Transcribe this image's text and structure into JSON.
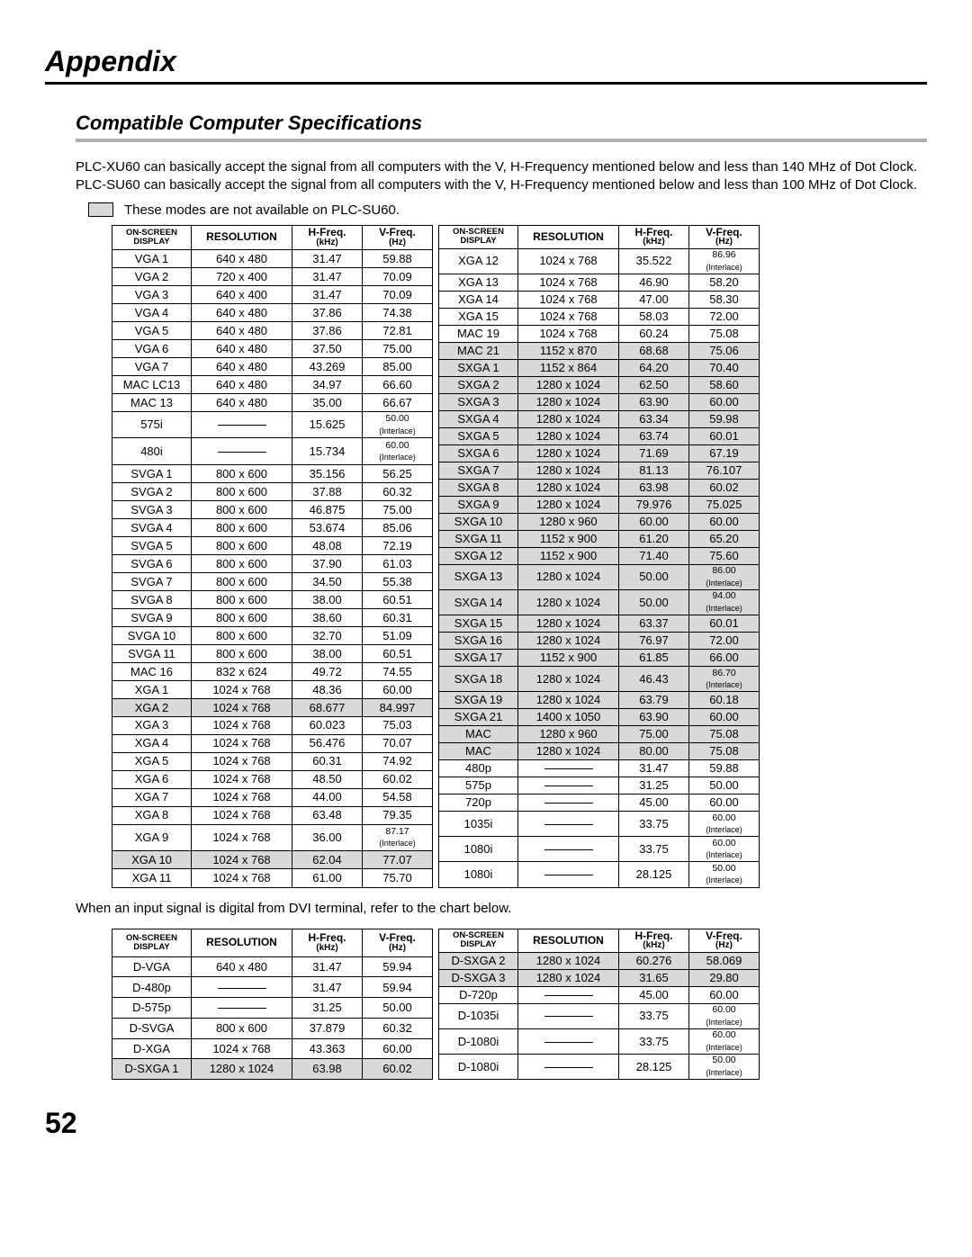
{
  "page_title": "Appendix",
  "section_title": "Compatible Computer Specifications",
  "intro_text": "PLC-XU60 can basically accept the signal from all computers with the V, H-Frequency mentioned below and less than 140 MHz of Dot Clock.  PLC-SU60 can basically accept the signal from all computers with the V, H-Frequency mentioned below and less than 100 MHz of Dot Clock.",
  "note_text": "These modes are not available on PLC-SU60.",
  "headers": {
    "display_l1": "ON-SCREEN",
    "display_l2": "DISPLAY",
    "resolution": "RESOLUTION",
    "hfreq_l1": "H-Freq.",
    "hfreq_l2": "(kHz)",
    "vfreq_l1": "V-Freq.",
    "vfreq_l2": "(Hz)"
  },
  "table1_left": [
    {
      "d": "VGA 1",
      "r": "640 x 480",
      "h": "31.47",
      "v": "59.88"
    },
    {
      "d": "VGA 2",
      "r": "720 x 400",
      "h": "31.47",
      "v": "70.09"
    },
    {
      "d": "VGA 3",
      "r": "640 x 400",
      "h": "31.47",
      "v": "70.09"
    },
    {
      "d": "VGA 4",
      "r": "640 x 480",
      "h": "37.86",
      "v": "74.38"
    },
    {
      "d": "VGA 5",
      "r": "640 x 480",
      "h": "37.86",
      "v": "72.81"
    },
    {
      "d": "VGA 6",
      "r": "640 x 480",
      "h": "37.50",
      "v": "75.00"
    },
    {
      "d": "VGA 7",
      "r": "640 x 480",
      "h": "43.269",
      "v": "85.00"
    },
    {
      "d": "MAC LC13",
      "r": "640 x 480",
      "h": "34.97",
      "v": "66.60"
    },
    {
      "d": "MAC 13",
      "r": "640 x 480",
      "h": "35.00",
      "v": "66.67"
    },
    {
      "d": "575i",
      "r": "—",
      "h": "15.625",
      "v": "50.00",
      "vi": true
    },
    {
      "d": "480i",
      "r": "—",
      "h": "15.734",
      "v": "60.00",
      "vi": true
    },
    {
      "d": "SVGA 1",
      "r": "800 x 600",
      "h": "35.156",
      "v": "56.25"
    },
    {
      "d": "SVGA 2",
      "r": "800 x 600",
      "h": "37.88",
      "v": "60.32"
    },
    {
      "d": "SVGA 3",
      "r": "800 x 600",
      "h": "46.875",
      "v": "75.00"
    },
    {
      "d": "SVGA 4",
      "r": "800 x 600",
      "h": "53.674",
      "v": "85.06"
    },
    {
      "d": "SVGA 5",
      "r": "800 x 600",
      "h": "48.08",
      "v": "72.19"
    },
    {
      "d": "SVGA 6",
      "r": "800 x 600",
      "h": "37.90",
      "v": "61.03"
    },
    {
      "d": "SVGA 7",
      "r": "800 x 600",
      "h": "34.50",
      "v": "55.38"
    },
    {
      "d": "SVGA 8",
      "r": "800 x 600",
      "h": "38.00",
      "v": "60.51"
    },
    {
      "d": "SVGA 9",
      "r": "800 x 600",
      "h": "38.60",
      "v": "60.31"
    },
    {
      "d": "SVGA 10",
      "r": "800 x 600",
      "h": "32.70",
      "v": "51.09"
    },
    {
      "d": "SVGA 11",
      "r": "800 x 600",
      "h": "38.00",
      "v": "60.51"
    },
    {
      "d": "MAC 16",
      "r": "832 x 624",
      "h": "49.72",
      "v": "74.55"
    },
    {
      "d": "XGA 1",
      "r": "1024 x 768",
      "h": "48.36",
      "v": "60.00"
    },
    {
      "d": "XGA 2",
      "r": "1024 x 768",
      "h": "68.677",
      "v": "84.997",
      "s": true
    },
    {
      "d": "XGA 3",
      "r": "1024 x 768",
      "h": "60.023",
      "v": "75.03"
    },
    {
      "d": "XGA 4",
      "r": "1024 x 768",
      "h": "56.476",
      "v": "70.07"
    },
    {
      "d": "XGA 5",
      "r": "1024 x 768",
      "h": "60.31",
      "v": "74.92"
    },
    {
      "d": "XGA 6",
      "r": "1024 x 768",
      "h": "48.50",
      "v": "60.02"
    },
    {
      "d": "XGA 7",
      "r": "1024 x 768",
      "h": "44.00",
      "v": "54.58"
    },
    {
      "d": "XGA 8",
      "r": "1024 x 768",
      "h": "63.48",
      "v": "79.35"
    },
    {
      "d": "XGA 9",
      "r": "1024 x 768",
      "h": "36.00",
      "v": "87.17",
      "vi": true
    },
    {
      "d": "XGA 10",
      "r": "1024 x 768",
      "h": "62.04",
      "v": "77.07",
      "s": true
    },
    {
      "d": "XGA 11",
      "r": "1024 x 768",
      "h": "61.00",
      "v": "75.70"
    }
  ],
  "table1_right": [
    {
      "d": "XGA 12",
      "r": "1024 x 768",
      "h": "35.522",
      "v": "86.96",
      "vi": true
    },
    {
      "d": "XGA 13",
      "r": "1024 x 768",
      "h": "46.90",
      "v": "58.20"
    },
    {
      "d": "XGA 14",
      "r": "1024 x 768",
      "h": "47.00",
      "v": "58.30"
    },
    {
      "d": "XGA 15",
      "r": "1024 x 768",
      "h": "58.03",
      "v": "72.00"
    },
    {
      "d": "MAC 19",
      "r": "1024 x 768",
      "h": "60.24",
      "v": "75.08"
    },
    {
      "d": "MAC 21",
      "r": "1152 x 870",
      "h": "68.68",
      "v": "75.06",
      "s": true
    },
    {
      "d": "SXGA 1",
      "r": "1152 x 864",
      "h": "64.20",
      "v": "70.40",
      "s": true
    },
    {
      "d": "SXGA 2",
      "r": "1280 x 1024",
      "h": "62.50",
      "v": "58.60",
      "s": true
    },
    {
      "d": "SXGA 3",
      "r": "1280 x 1024",
      "h": "63.90",
      "v": "60.00",
      "s": true
    },
    {
      "d": "SXGA 4",
      "r": "1280 x 1024",
      "h": "63.34",
      "v": "59.98",
      "s": true
    },
    {
      "d": "SXGA 5",
      "r": "1280 x 1024",
      "h": "63.74",
      "v": "60.01",
      "s": true
    },
    {
      "d": "SXGA 6",
      "r": "1280 x 1024",
      "h": "71.69",
      "v": "67.19",
      "s": true
    },
    {
      "d": "SXGA 7",
      "r": "1280 x 1024",
      "h": "81.13",
      "v": "76.107",
      "s": true
    },
    {
      "d": "SXGA 8",
      "r": "1280 x 1024",
      "h": "63.98",
      "v": "60.02",
      "s": true
    },
    {
      "d": "SXGA 9",
      "r": "1280 x 1024",
      "h": "79.976",
      "v": "75.025",
      "s": true
    },
    {
      "d": "SXGA 10",
      "r": "1280 x 960",
      "h": "60.00",
      "v": "60.00",
      "s": true
    },
    {
      "d": "SXGA 11",
      "r": "1152 x 900",
      "h": "61.20",
      "v": "65.20",
      "s": true
    },
    {
      "d": "SXGA 12",
      "r": "1152 x 900",
      "h": "71.40",
      "v": "75.60",
      "s": true
    },
    {
      "d": "SXGA 13",
      "r": "1280 x 1024",
      "h": "50.00",
      "v": "86.00",
      "vi": true,
      "s": true
    },
    {
      "d": "SXGA 14",
      "r": "1280 x 1024",
      "h": "50.00",
      "v": "94.00",
      "vi": true,
      "s": true
    },
    {
      "d": "SXGA 15",
      "r": "1280 x 1024",
      "h": "63.37",
      "v": "60.01",
      "s": true
    },
    {
      "d": "SXGA 16",
      "r": "1280 x 1024",
      "h": "76.97",
      "v": "72.00",
      "s": true
    },
    {
      "d": "SXGA 17",
      "r": "1152 x 900",
      "h": "61.85",
      "v": "66.00",
      "s": true
    },
    {
      "d": "SXGA 18",
      "r": "1280 x 1024",
      "h": "46.43",
      "v": "86.70",
      "vi": true,
      "s": true
    },
    {
      "d": "SXGA 19",
      "r": "1280 x 1024",
      "h": "63.79",
      "v": "60.18",
      "s": true
    },
    {
      "d": "SXGA 21",
      "r": "1400 x 1050",
      "h": "63.90",
      "v": "60.00",
      "s": true
    },
    {
      "d": "MAC",
      "r": "1280 x 960",
      "h": "75.00",
      "v": "75.08",
      "s": true
    },
    {
      "d": "MAC",
      "r": "1280 x 1024",
      "h": "80.00",
      "v": "75.08",
      "s": true
    },
    {
      "d": "480p",
      "r": "—",
      "h": "31.47",
      "v": "59.88"
    },
    {
      "d": "575p",
      "r": "—",
      "h": "31.25",
      "v": "50.00"
    },
    {
      "d": "720p",
      "r": "—",
      "h": "45.00",
      "v": "60.00"
    },
    {
      "d": "1035i",
      "r": "—",
      "h": "33.75",
      "v": "60.00",
      "vi": true
    },
    {
      "d": "1080i",
      "r": "—",
      "h": "33.75",
      "v": "60.00",
      "vi": true
    },
    {
      "d": "1080i",
      "r": "—",
      "h": "28.125",
      "v": "50.00",
      "vi": true
    }
  ],
  "mid_note": "When an input signal is digital from DVI terminal, refer to the chart below.",
  "table2_left": [
    {
      "d": "D-VGA",
      "r": "640 x 480",
      "h": "31.47",
      "v": "59.94"
    },
    {
      "d": "D-480p",
      "r": "—",
      "h": "31.47",
      "v": "59.94"
    },
    {
      "d": "D-575p",
      "r": "—",
      "h": "31.25",
      "v": "50.00"
    },
    {
      "d": "D-SVGA",
      "r": "800 x 600",
      "h": "37.879",
      "v": "60.32"
    },
    {
      "d": "D-XGA",
      "r": "1024 x 768",
      "h": "43.363",
      "v": "60.00"
    },
    {
      "d": "D-SXGA 1",
      "r": "1280 x 1024",
      "h": "63.98",
      "v": "60.02",
      "s": true
    }
  ],
  "table2_right": [
    {
      "d": "D-SXGA 2",
      "r": "1280 x 1024",
      "h": "60.276",
      "v": "58.069",
      "s": true
    },
    {
      "d": "D-SXGA 3",
      "r": "1280 x 1024",
      "h": "31.65",
      "v": "29.80",
      "s": true
    },
    {
      "d": "D-720p",
      "r": "—",
      "h": "45.00",
      "v": "60.00"
    },
    {
      "d": "D-1035i",
      "r": "—",
      "h": "33.75",
      "v": "60.00",
      "vi": true
    },
    {
      "d": "D-1080i",
      "r": "—",
      "h": "33.75",
      "v": "60.00",
      "vi": true
    },
    {
      "d": "D-1080i",
      "r": "—",
      "h": "28.125",
      "v": "50.00",
      "vi": true
    }
  ],
  "page_number": "52",
  "interlace_label": "(Interlace)"
}
